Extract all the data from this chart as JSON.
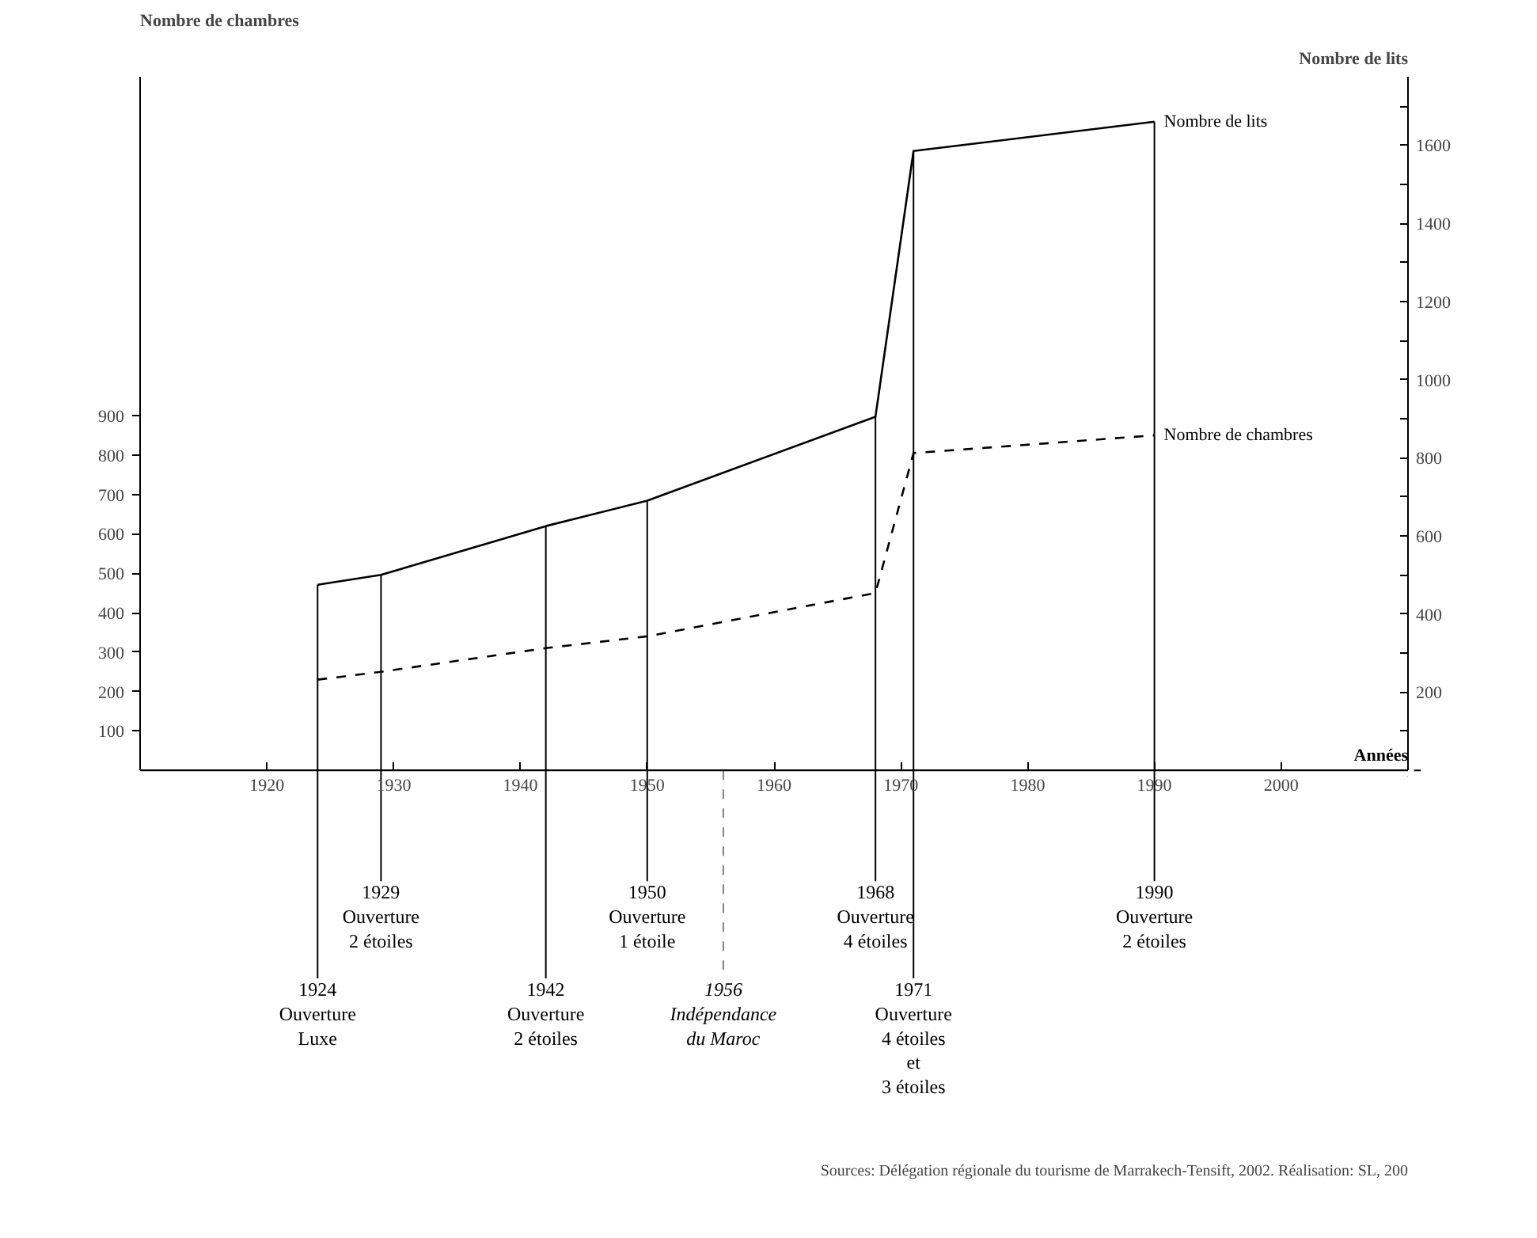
{
  "chart_data": {
    "type": "line",
    "xlabel": "Années",
    "ylabel": "Nombre de chambres",
    "y2label": "Nombre de lits",
    "x": [
      1924,
      1929,
      1942,
      1950,
      1968,
      1971,
      1990
    ],
    "series": [
      {
        "name": "Nombre de lits",
        "color": "#000000",
        "axis": "y2",
        "line_style": "solid",
        "values": [
          475,
          500,
          625,
          690,
          905,
          1585,
          1660
        ]
      },
      {
        "name": "Nombre de chambres",
        "color": "#000000",
        "line_style": "dashed",
        "values": [
          230,
          250,
          310,
          340,
          450,
          805,
          850
        ]
      }
    ],
    "xlim": [
      1910,
      2010
    ],
    "xticks": [
      1920,
      1930,
      1940,
      1950,
      1960,
      1970,
      1980,
      1990,
      2000
    ],
    "ylim": [
      0,
      1760
    ],
    "yticks": [
      100,
      200,
      300,
      400,
      500,
      600,
      700,
      800,
      900
    ],
    "y2lim": [
      0,
      1775
    ],
    "y2ticks": [
      {
        "value": 100,
        "label": null
      },
      200,
      {
        "value": 300,
        "label": null
      },
      400,
      {
        "value": 500,
        "label": null
      },
      600,
      {
        "value": 700,
        "label": null
      },
      800,
      {
        "value": 900,
        "label": null
      },
      1000,
      {
        "value": 1100,
        "label": null
      },
      1200,
      {
        "value": 1300,
        "label": null
      },
      1400,
      {
        "value": 1500,
        "label": null
      },
      1600,
      {
        "value": 1700,
        "label": null
      }
    ],
    "ref_lines": [
      {
        "axis": "x",
        "value": 1924,
        "label": "1924\nOuverture\nLuxe"
      },
      {
        "axis": "x",
        "value": 1929,
        "label": "1929\nOuverture\n2 étoiles"
      },
      {
        "axis": "x",
        "value": 1942,
        "label": "1942\nOuverture\n2 étoiles"
      },
      {
        "axis": "x",
        "value": 1950,
        "label": "1950\nOuverture\n1 étoile"
      },
      {
        "axis": "x",
        "value": 1956,
        "label": "1956\nIndépendance\ndu Maroc",
        "line_style": "dashed",
        "color": "#808080"
      },
      {
        "axis": "x",
        "value": 1968,
        "label": "1968\nOuverture\n4 étoiles"
      },
      {
        "axis": "x",
        "value": 1971,
        "label": "1971\nOuverture\n4 étoiles\net\n3 étoiles"
      },
      {
        "axis": "x",
        "value": 1990,
        "label": "1990\nOuverture\n2 étoiles"
      }
    ],
    "annotations": [
      "Sources: Délégation régionale du tourisme de Marrakech-Tensift, 2002. Réalisation: SL, 200"
    ],
    "grid": false,
    "legend": false,
    "marker": "none"
  }
}
